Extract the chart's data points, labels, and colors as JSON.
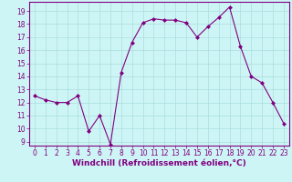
{
  "x": [
    0,
    1,
    2,
    3,
    4,
    5,
    6,
    7,
    8,
    9,
    10,
    11,
    12,
    13,
    14,
    15,
    16,
    17,
    18,
    19,
    20,
    21,
    22,
    23
  ],
  "y": [
    12.5,
    12.2,
    12.0,
    12.0,
    12.5,
    9.8,
    11.0,
    8.8,
    14.3,
    16.6,
    18.1,
    18.4,
    18.3,
    18.3,
    18.1,
    17.0,
    17.8,
    18.5,
    19.3,
    16.3,
    14.0,
    13.5,
    12.0,
    10.4
  ],
  "line_color": "#800080",
  "marker": "D",
  "marker_size": 2.0,
  "bg_color": "#cef5f5",
  "grid_color": "#aadddd",
  "xlabel": "Windchill (Refroidissement éolien,°C)",
  "xlim": [
    -0.5,
    23.5
  ],
  "ylim": [
    8.7,
    19.7
  ],
  "yticks": [
    9,
    10,
    11,
    12,
    13,
    14,
    15,
    16,
    17,
    18,
    19
  ],
  "xticks": [
    0,
    1,
    2,
    3,
    4,
    5,
    6,
    7,
    8,
    9,
    10,
    11,
    12,
    13,
    14,
    15,
    16,
    17,
    18,
    19,
    20,
    21,
    22,
    23
  ],
  "tick_label_fontsize": 5.5,
  "xlabel_fontsize": 6.5,
  "spine_color": "#800080",
  "line_width": 0.8
}
